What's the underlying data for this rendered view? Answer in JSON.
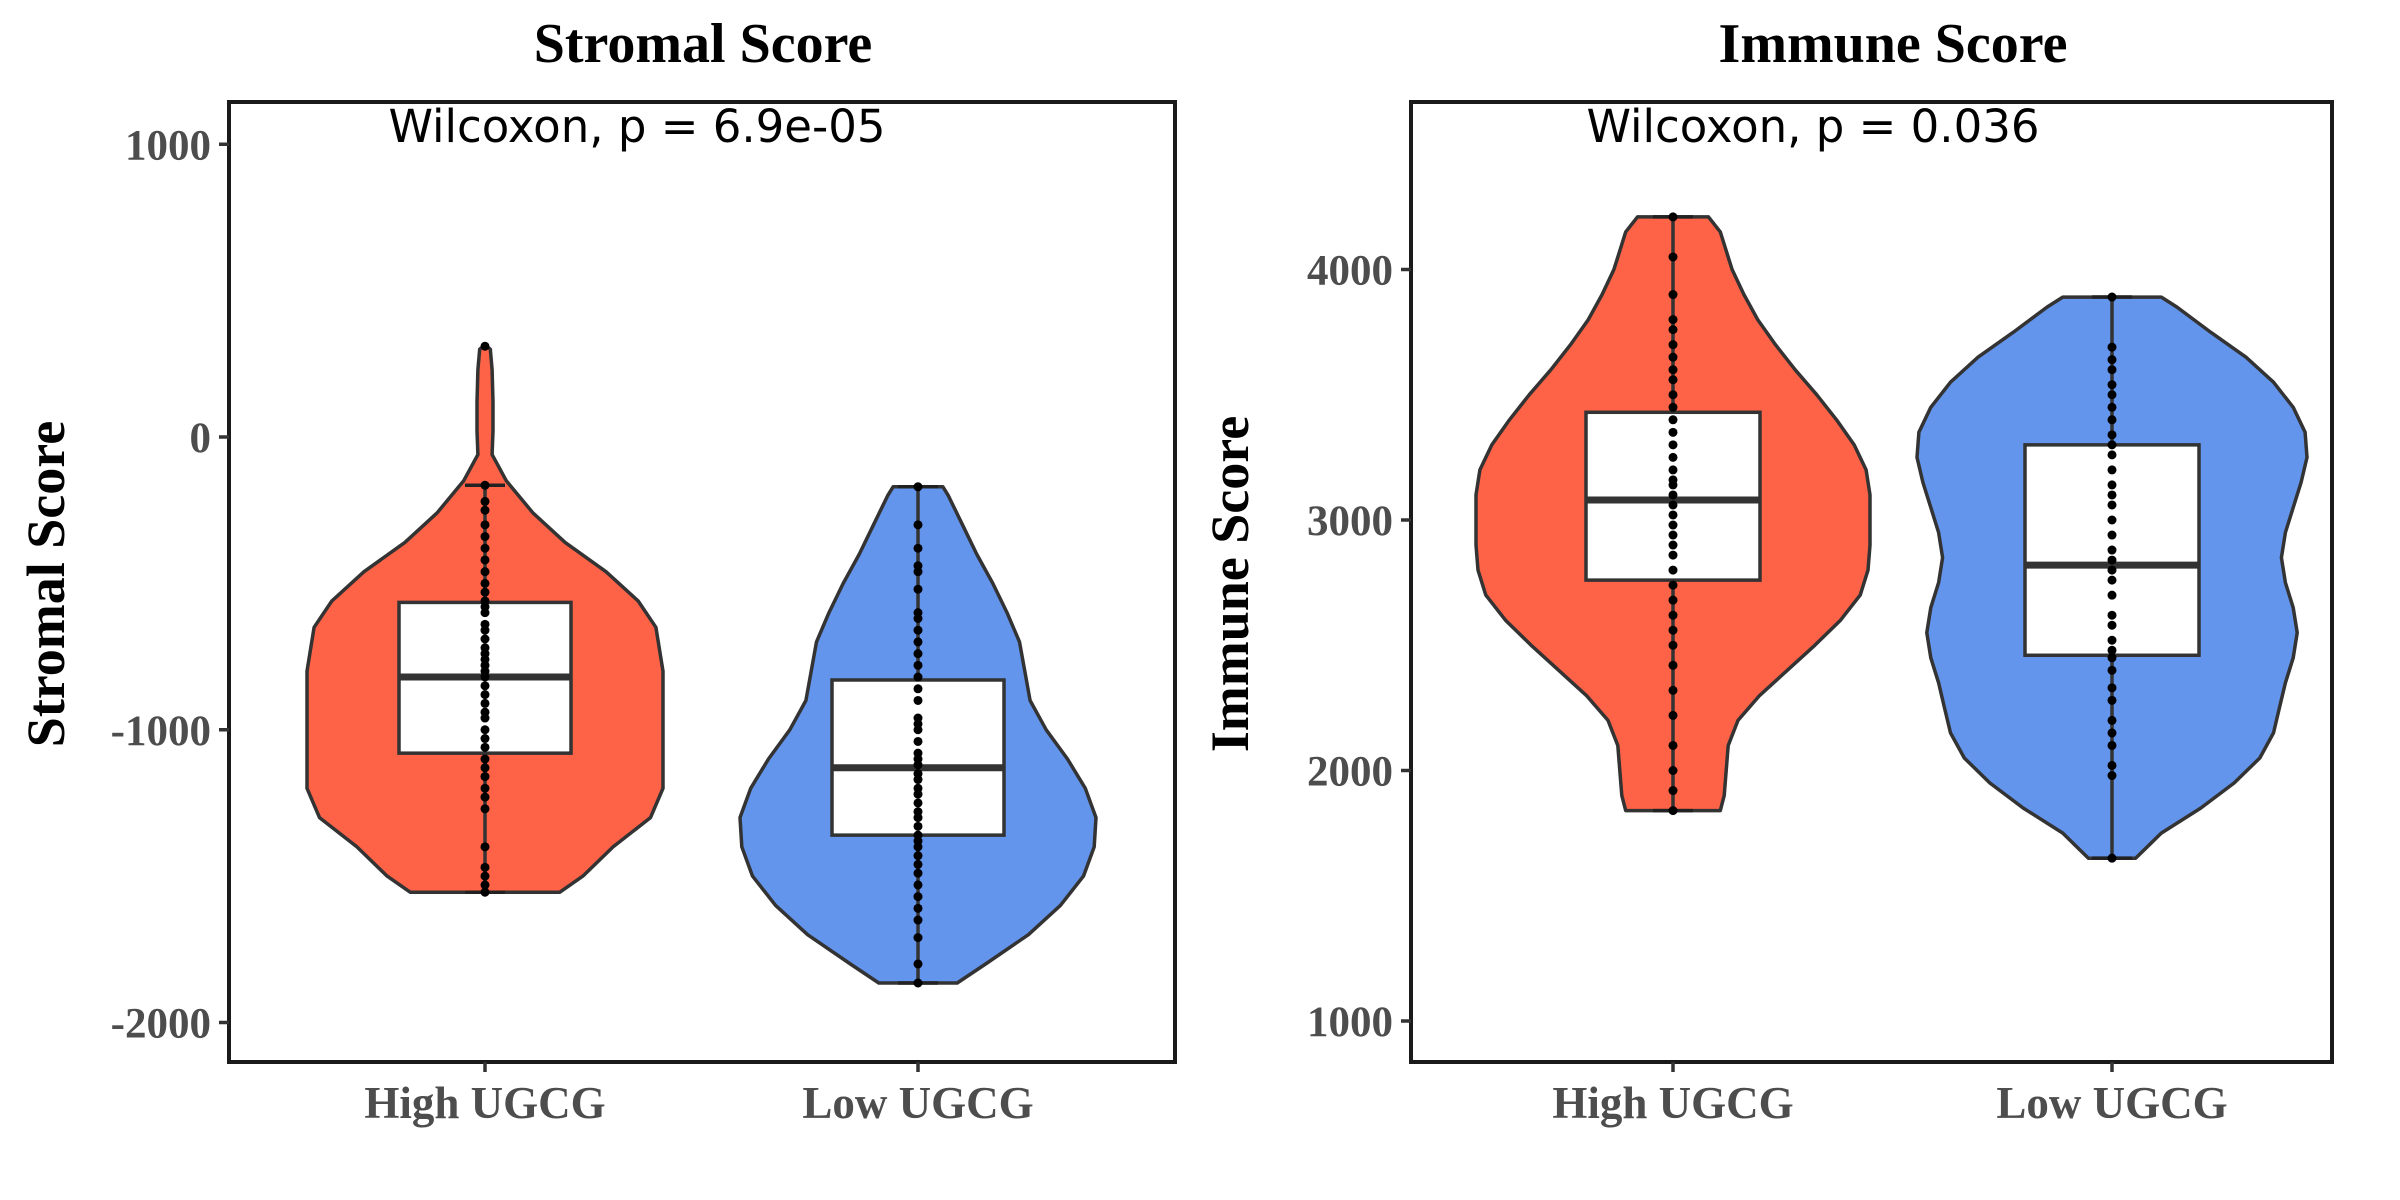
{
  "chart_data": [
    {
      "type": "violin",
      "title": "Stromal Score",
      "ylabel": "Stromal Score",
      "xlabel": "",
      "ylim": [
        -2150,
        1150
      ],
      "yticks": [
        -2000,
        -1000,
        0,
        1000
      ],
      "categories": [
        "High UGCG",
        "Low UGCG"
      ],
      "annotation": "Wilcoxon, p = 6.9e-05",
      "colors": [
        "#ff6347",
        "#6495ed"
      ],
      "groups": [
        {
          "name": "High UGCG",
          "min": -1555,
          "q1": -1080,
          "median": -820,
          "q3": -565,
          "max": -165,
          "outliers": [
            310
          ],
          "density": [
            [
              -1555,
              0.42
            ],
            [
              -1500,
              0.55
            ],
            [
              -1400,
              0.72
            ],
            [
              -1300,
              0.93
            ],
            [
              -1200,
              1.0
            ],
            [
              -1050,
              1.0
            ],
            [
              -950,
              1.0
            ],
            [
              -800,
              1.0
            ],
            [
              -650,
              0.96
            ],
            [
              -560,
              0.86
            ],
            [
              -460,
              0.68
            ],
            [
              -360,
              0.45
            ],
            [
              -260,
              0.27
            ],
            [
              -150,
              0.12
            ],
            [
              -60,
              0.04
            ],
            [
              20,
              0.045
            ],
            [
              120,
              0.045
            ],
            [
              230,
              0.04
            ],
            [
              300,
              0.03
            ],
            [
              315,
              0.0
            ]
          ],
          "points": [
            -1555,
            -1530,
            -1500,
            -1470,
            -1400,
            -1270,
            -1230,
            -1200,
            -1160,
            -1130,
            -1100,
            -1060,
            -1030,
            -1000,
            -960,
            -940,
            -910,
            -880,
            -850,
            -820,
            -800,
            -780,
            -760,
            -740,
            -720,
            -690,
            -660,
            -640,
            -600,
            -580,
            -560,
            -530,
            -500,
            -460,
            -420,
            -380,
            -340,
            -300,
            -250,
            -220,
            -165,
            310
          ]
        },
        {
          "name": "Low UGCG",
          "min": -1865,
          "q1": -1360,
          "median": -1130,
          "q3": -830,
          "max": -170,
          "outliers": [],
          "density": [
            [
              -1865,
              0.22
            ],
            [
              -1800,
              0.38
            ],
            [
              -1700,
              0.62
            ],
            [
              -1600,
              0.8
            ],
            [
              -1500,
              0.93
            ],
            [
              -1400,
              0.99
            ],
            [
              -1300,
              1.0
            ],
            [
              -1200,
              0.94
            ],
            [
              -1100,
              0.84
            ],
            [
              -1000,
              0.72
            ],
            [
              -900,
              0.63
            ],
            [
              -800,
              0.6
            ],
            [
              -700,
              0.57
            ],
            [
              -600,
              0.5
            ],
            [
              -500,
              0.42
            ],
            [
              -400,
              0.33
            ],
            [
              -300,
              0.25
            ],
            [
              -200,
              0.17
            ],
            [
              -170,
              0.14
            ]
          ],
          "points": [
            -1865,
            -1800,
            -1710,
            -1650,
            -1610,
            -1570,
            -1530,
            -1490,
            -1460,
            -1430,
            -1400,
            -1380,
            -1360,
            -1330,
            -1300,
            -1280,
            -1250,
            -1220,
            -1200,
            -1170,
            -1150,
            -1120,
            -1100,
            -1080,
            -1040,
            -1000,
            -980,
            -960,
            -900,
            -860,
            -820,
            -780,
            -740,
            -700,
            -660,
            -620,
            -600,
            -520,
            -460,
            -440,
            -380,
            -300,
            -170
          ]
        }
      ]
    },
    {
      "type": "violin",
      "title": "Immune Score",
      "ylabel": "Immune Score",
      "xlabel": "",
      "ylim": [
        850,
        4650
      ],
      "yticks": [
        1000,
        2000,
        3000,
        4000
      ],
      "categories": [
        "High UGCG",
        "Low UGCG"
      ],
      "annotation": "Wilcoxon, p = 0.036",
      "colors": [
        "#ff6347",
        "#6495ed"
      ],
      "groups": [
        {
          "name": "High UGCG",
          "min": 1840,
          "q1": 2760,
          "median": 3080,
          "q3": 3430,
          "max": 4210,
          "outliers": [],
          "density": [
            [
              1840,
              0.24
            ],
            [
              1900,
              0.26
            ],
            [
              2000,
              0.27
            ],
            [
              2100,
              0.28
            ],
            [
              2200,
              0.33
            ],
            [
              2300,
              0.44
            ],
            [
              2400,
              0.58
            ],
            [
              2500,
              0.72
            ],
            [
              2600,
              0.85
            ],
            [
              2700,
              0.95
            ],
            [
              2800,
              0.99
            ],
            [
              2900,
              1.0
            ],
            [
              3000,
              1.0
            ],
            [
              3100,
              1.0
            ],
            [
              3200,
              0.98
            ],
            [
              3300,
              0.92
            ],
            [
              3400,
              0.83
            ],
            [
              3500,
              0.73
            ],
            [
              3600,
              0.62
            ],
            [
              3700,
              0.52
            ],
            [
              3800,
              0.43
            ],
            [
              3900,
              0.36
            ],
            [
              4000,
              0.3
            ],
            [
              4100,
              0.26
            ],
            [
              4150,
              0.24
            ],
            [
              4210,
              0.18
            ]
          ],
          "points": [
            1840,
            1920,
            2000,
            2100,
            2220,
            2320,
            2420,
            2500,
            2560,
            2620,
            2680,
            2740,
            2800,
            2860,
            2900,
            2940,
            2980,
            3020,
            3060,
            3100,
            3140,
            3160,
            3200,
            3250,
            3300,
            3350,
            3400,
            3450,
            3500,
            3560,
            3600,
            3650,
            3700,
            3760,
            3800,
            3900,
            4050,
            4210
          ]
        },
        {
          "name": "Low UGCG",
          "min": 1650,
          "q1": 2460,
          "median": 2820,
          "q3": 3300,
          "max": 3890,
          "outliers": [],
          "density": [
            [
              1650,
              0.12
            ],
            [
              1750,
              0.25
            ],
            [
              1850,
              0.45
            ],
            [
              1950,
              0.62
            ],
            [
              2050,
              0.75
            ],
            [
              2150,
              0.82
            ],
            [
              2250,
              0.85
            ],
            [
              2350,
              0.88
            ],
            [
              2450,
              0.92
            ],
            [
              2550,
              0.94
            ],
            [
              2650,
              0.92
            ],
            [
              2750,
              0.88
            ],
            [
              2850,
              0.86
            ],
            [
              2950,
              0.88
            ],
            [
              3050,
              0.92
            ],
            [
              3150,
              0.96
            ],
            [
              3250,
              0.99
            ],
            [
              3350,
              0.98
            ],
            [
              3450,
              0.92
            ],
            [
              3550,
              0.82
            ],
            [
              3650,
              0.68
            ],
            [
              3750,
              0.5
            ],
            [
              3850,
              0.33
            ],
            [
              3890,
              0.25
            ]
          ],
          "points": [
            1650,
            1980,
            2020,
            2100,
            2150,
            2200,
            2280,
            2330,
            2400,
            2450,
            2480,
            2520,
            2580,
            2620,
            2700,
            2760,
            2800,
            2840,
            2880,
            2940,
            3000,
            3060,
            3100,
            3140,
            3200,
            3260,
            3300,
            3340,
            3400,
            3450,
            3500,
            3540,
            3600,
            3640,
            3690,
            3890
          ]
        }
      ]
    }
  ]
}
